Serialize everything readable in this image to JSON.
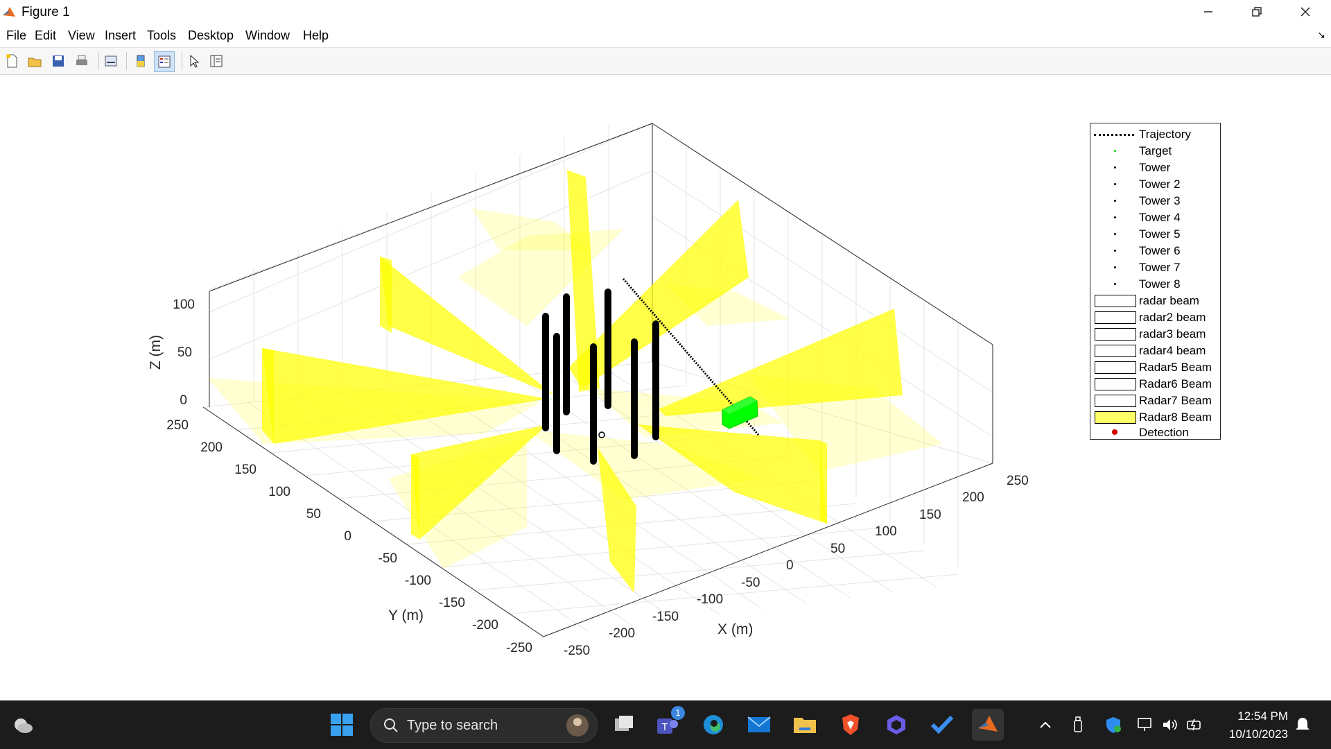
{
  "window": {
    "title": "Figure 1"
  },
  "menu": [
    "File",
    "Edit",
    "View",
    "Insert",
    "Tools",
    "Desktop",
    "Window",
    "Help"
  ],
  "toolbar_icons": [
    "new-figure-icon",
    "open-icon",
    "save-icon",
    "print-icon",
    "link-plot-icon",
    "colorbar-icon",
    "legend-icon",
    "pointer-icon",
    "property-inspector-icon"
  ],
  "axes": {
    "x_label": "X (m)",
    "y_label": "Y (m)",
    "z_label": "Z (m)",
    "x_ticks": [
      "-250",
      "-200",
      "-150",
      "-100",
      "-50",
      "0",
      "50",
      "100",
      "150",
      "200",
      "250"
    ],
    "y_ticks": [
      "-250",
      "-200",
      "-150",
      "-100",
      "-50",
      "0",
      "50",
      "100",
      "150",
      "200",
      "250"
    ],
    "z_ticks": [
      "0",
      "50",
      "100"
    ],
    "x_range": [
      -250,
      250
    ],
    "y_range": [
      -250,
      250
    ],
    "z_range": [
      0,
      120
    ],
    "grid": true
  },
  "legend": {
    "placement": "right",
    "entries": [
      {
        "label": "Trajectory",
        "kind": "dotted-line",
        "color": "#000000"
      },
      {
        "label": "Target",
        "kind": "marker",
        "color": "#00c800"
      },
      {
        "label": "Tower",
        "kind": "marker",
        "color": "#000000"
      },
      {
        "label": "Tower 2",
        "kind": "marker",
        "color": "#000000"
      },
      {
        "label": "Tower 3",
        "kind": "marker",
        "color": "#000000"
      },
      {
        "label": "Tower 4",
        "kind": "marker",
        "color": "#000000"
      },
      {
        "label": "Tower 5",
        "kind": "marker",
        "color": "#000000"
      },
      {
        "label": "Tower 6",
        "kind": "marker",
        "color": "#000000"
      },
      {
        "label": "Tower 7",
        "kind": "marker",
        "color": "#000000"
      },
      {
        "label": "Tower 8",
        "kind": "marker",
        "color": "#000000"
      },
      {
        "label": "radar beam",
        "kind": "patch",
        "color": "#ffffff"
      },
      {
        "label": "radar2 beam",
        "kind": "patch",
        "color": "#ffffff"
      },
      {
        "label": "radar3 beam",
        "kind": "patch",
        "color": "#ffffff"
      },
      {
        "label": "radar4 beam",
        "kind": "patch",
        "color": "#ffffff"
      },
      {
        "label": "Radar5 Beam",
        "kind": "patch",
        "color": "#ffffff"
      },
      {
        "label": "Radar6 Beam",
        "kind": "patch",
        "color": "#ffffff"
      },
      {
        "label": "Radar7 Beam",
        "kind": "patch",
        "color": "#ffffff"
      },
      {
        "label": "Radar8 Beam",
        "kind": "patch",
        "color": "#ffff66"
      },
      {
        "label": "Detection",
        "kind": "marker",
        "color": "#d40000"
      }
    ]
  },
  "colors": {
    "beam": "#ffff00",
    "target": "#00ff00",
    "tower": "#000000",
    "taskbar": "#1c1c1c"
  },
  "taskbar": {
    "search_placeholder": "Type to search",
    "teams_badge": "1",
    "time": "12:54 PM",
    "date": "10/10/2023",
    "apps": [
      "windows-start-icon",
      "task-view-icon",
      "teams-icon",
      "edge-icon",
      "mail-icon",
      "file-explorer-icon",
      "brave-icon",
      "copilot-icon",
      "todo-icon",
      "matlab-icon"
    ]
  }
}
